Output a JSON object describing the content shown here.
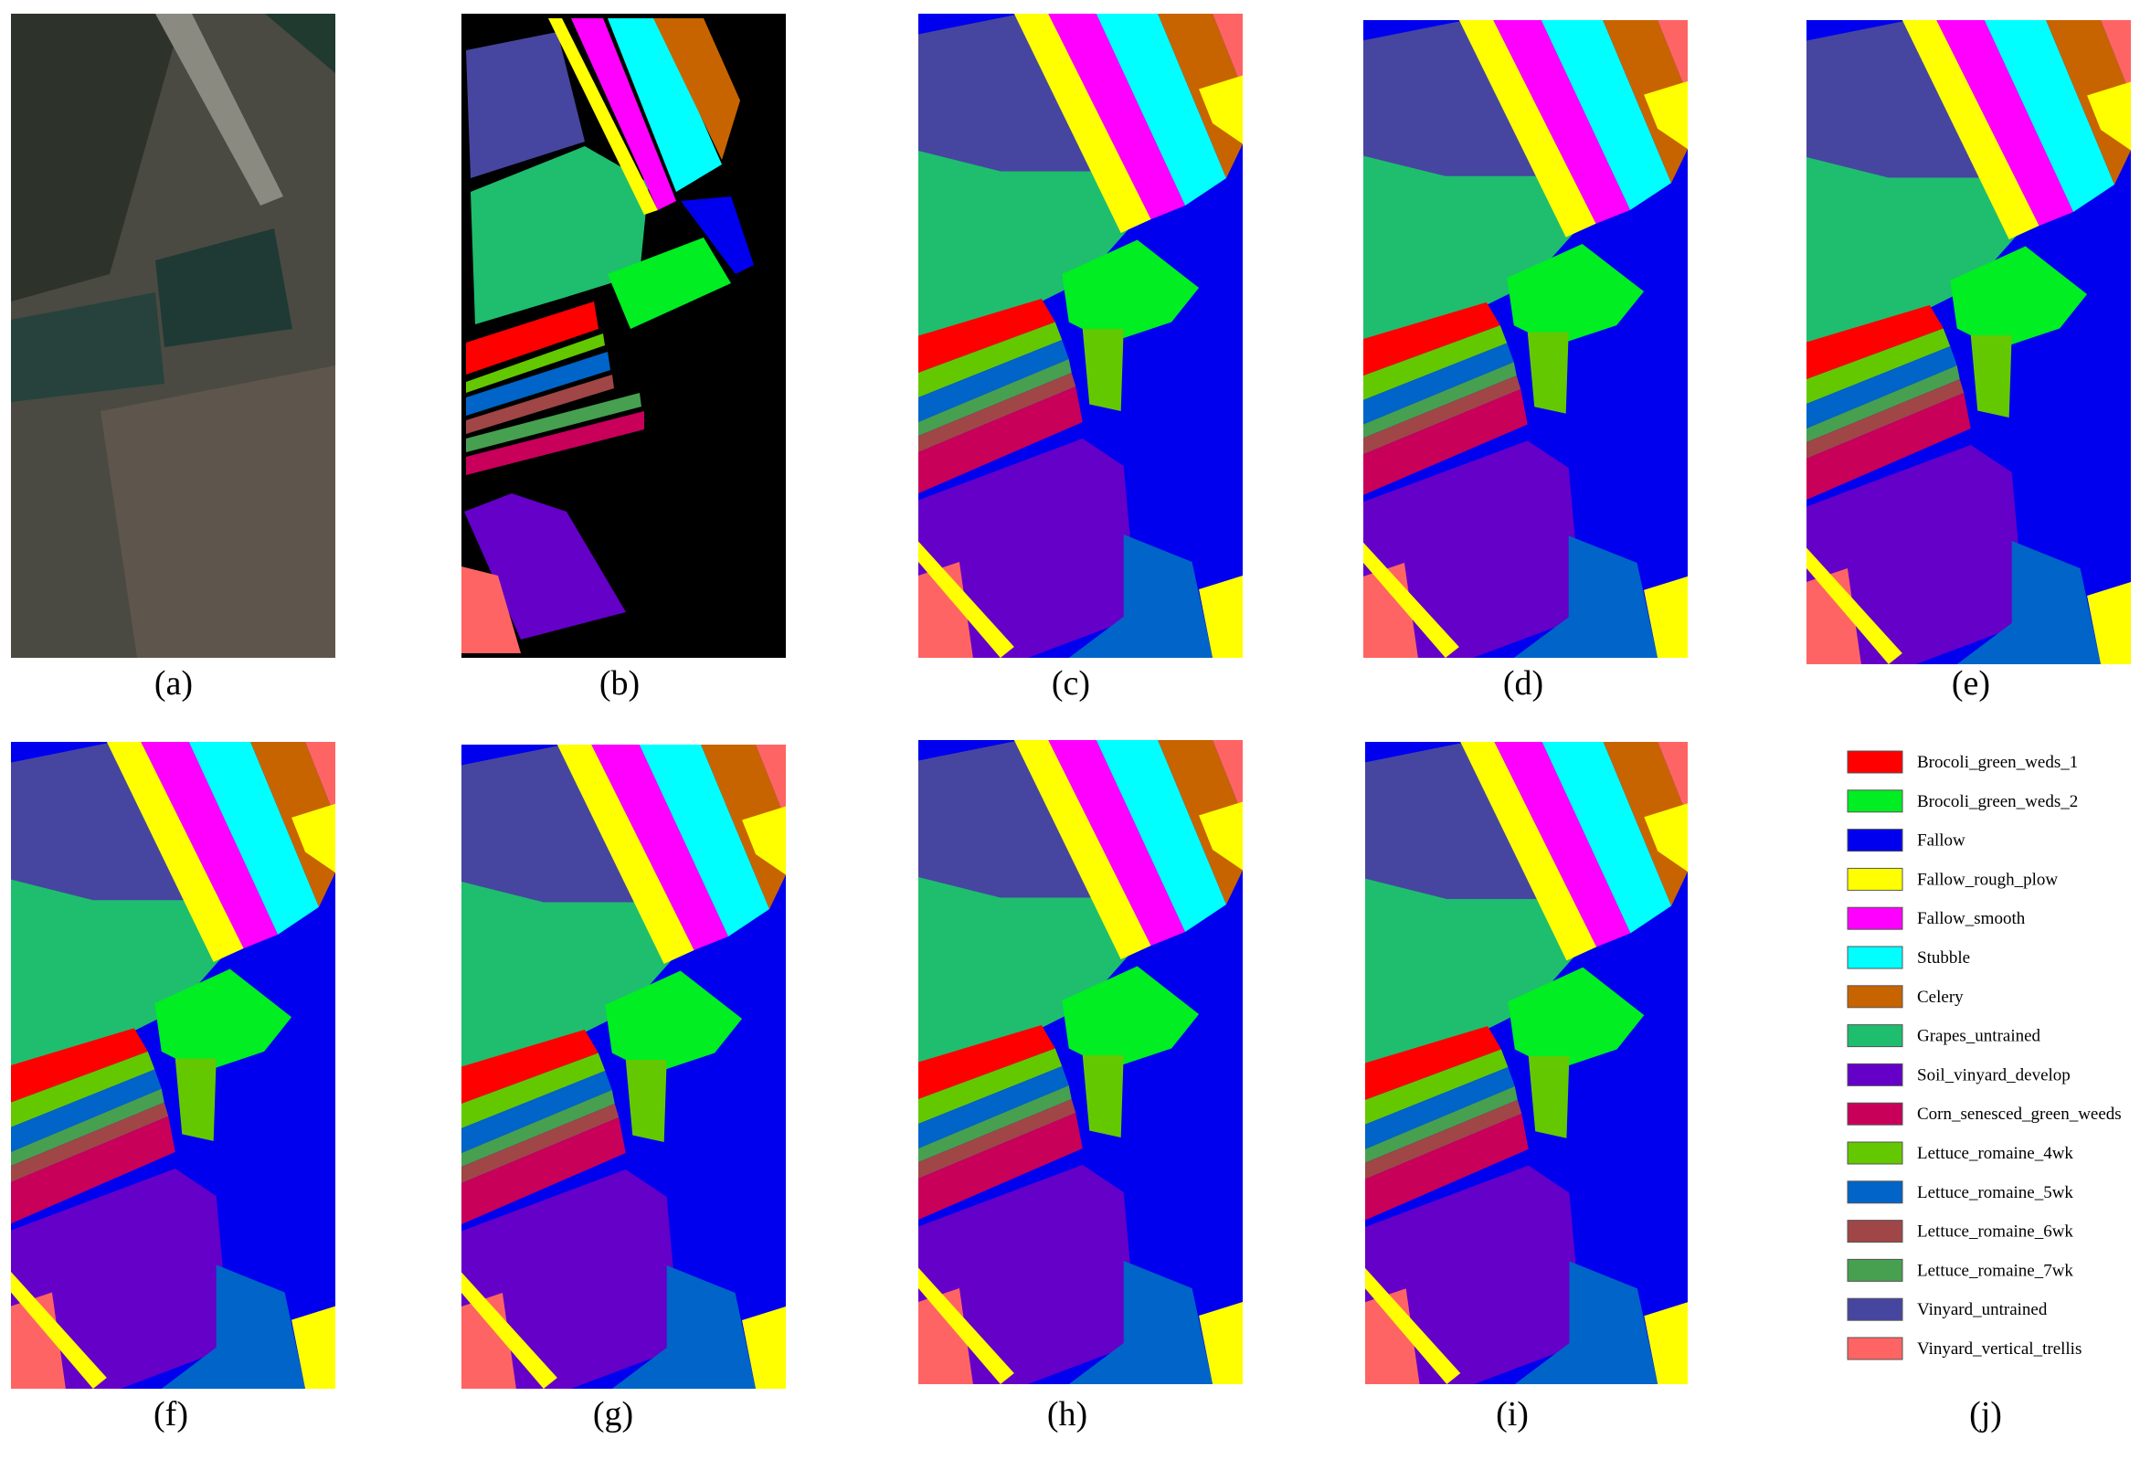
{
  "panels": [
    {
      "caption": "(a)"
    },
    {
      "caption": "(b)"
    },
    {
      "caption": "(c)"
    },
    {
      "caption": "(d)"
    },
    {
      "caption": "(e)"
    },
    {
      "caption": "(f)"
    },
    {
      "caption": "(g)"
    },
    {
      "caption": "(h)"
    },
    {
      "caption": "(i)"
    },
    {
      "caption": "(j)"
    }
  ],
  "legend": {
    "items": [
      {
        "label": "Brocoli_green_weds_1",
        "color": "#ff0000"
      },
      {
        "label": "Brocoli_green_weds_2",
        "color": "#00ee22"
      },
      {
        "label": "Fallow",
        "color": "#0000ee"
      },
      {
        "label": "Fallow_rough_plow",
        "color": "#ffff00"
      },
      {
        "label": "Fallow_smooth",
        "color": "#ff00ff"
      },
      {
        "label": "Stubble",
        "color": "#00ffff"
      },
      {
        "label": "Celery",
        "color": "#c86400"
      },
      {
        "label": "Grapes_untrained",
        "color": "#1ebe6e"
      },
      {
        "label": "Soil_vinyard_develop",
        "color": "#6400c8"
      },
      {
        "label": "Corn_senesced_green_weeds",
        "color": "#c8005a"
      },
      {
        "label": "Lettuce_romaine_4wk",
        "color": "#64c800"
      },
      {
        "label": "Lettuce_romaine_5wk",
        "color": "#0064c8"
      },
      {
        "label": "Lettuce_romaine_6wk",
        "color": "#a04646"
      },
      {
        "label": "Lettuce_romaine_7wk",
        "color": "#46a050"
      },
      {
        "label": "Vinyard_untrained",
        "color": "#4646a0"
      },
      {
        "label": "Vinyard_vertical_trellis",
        "color": "#ff6464"
      }
    ]
  }
}
